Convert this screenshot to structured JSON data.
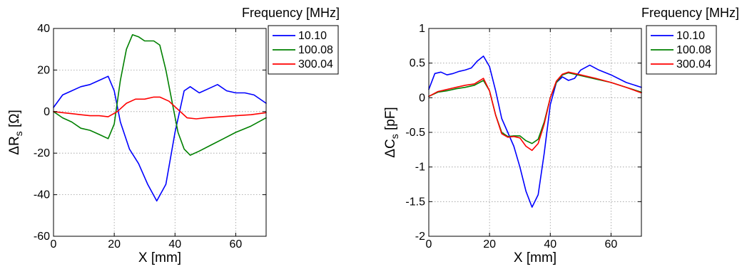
{
  "chart_data": [
    {
      "type": "line",
      "xlabel": "X [mm]",
      "ylabel": "ΔR",
      "ylabel_subscript": "s",
      "ylabel_unit": " [Ω]",
      "xlim": [
        0,
        70
      ],
      "ylim": [
        -60,
        40
      ],
      "xticks": [
        0,
        20,
        40,
        60
      ],
      "xtick_labels": [
        "0",
        "20",
        "40",
        "60"
      ],
      "yticks": [
        -60,
        -40,
        -20,
        0,
        20,
        40
      ],
      "ytick_labels": [
        "-60",
        "-40",
        "-20",
        "0",
        "20",
        "40"
      ],
      "grid": true,
      "legend_title": "Frequency [MHz]",
      "legend_position": "outside-right",
      "series": [
        {
          "name": "10.10",
          "color": "#0000ff",
          "x": [
            0,
            3,
            6,
            9,
            12,
            15,
            18,
            20,
            22,
            25,
            28,
            31,
            34,
            37,
            40,
            43,
            45,
            48,
            51,
            54,
            57,
            60,
            63,
            66,
            70
          ],
          "y": [
            2,
            8,
            10,
            12,
            13,
            15,
            17,
            10,
            -5,
            -18,
            -25,
            -35,
            -43,
            -35,
            -10,
            10,
            12,
            9,
            11,
            13,
            10,
            9,
            9,
            8,
            4
          ]
        },
        {
          "name": "100.08",
          "color": "#008000",
          "x": [
            0,
            3,
            6,
            9,
            12,
            15,
            18,
            20,
            22,
            24,
            26,
            28,
            30,
            33,
            35,
            37,
            39,
            41,
            43,
            45,
            48,
            52,
            56,
            60,
            65,
            70
          ],
          "y": [
            0,
            -3,
            -5,
            -8,
            -9,
            -11,
            -13,
            -6,
            15,
            30,
            37,
            36,
            34,
            34,
            32,
            20,
            5,
            -10,
            -18,
            -21,
            -19,
            -16,
            -13,
            -10,
            -7,
            -3
          ]
        },
        {
          "name": "300.04",
          "color": "#ff0000",
          "x": [
            0,
            3,
            6,
            9,
            12,
            15,
            18,
            21,
            24,
            27,
            30,
            33,
            35,
            38,
            41,
            44,
            47,
            50,
            55,
            60,
            65,
            70
          ],
          "y": [
            0,
            -0.5,
            -1,
            -1.5,
            -2,
            -2,
            -2.5,
            0,
            4,
            6,
            6,
            7,
            7,
            5,
            1,
            -3,
            -3.5,
            -3,
            -2.5,
            -2,
            -1.5,
            -0.5
          ]
        }
      ]
    },
    {
      "type": "line",
      "xlabel": "X [mm]",
      "ylabel": "ΔC",
      "ylabel_subscript": "s",
      "ylabel_unit": " [pF]",
      "xlim": [
        0,
        70
      ],
      "ylim": [
        -2,
        1
      ],
      "xticks": [
        0,
        20,
        40,
        60
      ],
      "xtick_labels": [
        "0",
        "20",
        "40",
        "60"
      ],
      "yticks": [
        -2,
        -1.5,
        -1,
        -0.5,
        0,
        0.5,
        1
      ],
      "ytick_labels": [
        "-2",
        "-1.5",
        "-1",
        "-0.5",
        "0",
        "0.5",
        "1"
      ],
      "grid": true,
      "legend_title": "Frequency [MHz]",
      "legend_position": "outside-right",
      "series": [
        {
          "name": "10.10",
          "color": "#0000ff",
          "x": [
            0,
            2,
            4,
            6,
            8,
            10,
            12,
            14,
            16,
            18,
            20,
            22,
            24,
            26,
            28,
            30,
            32,
            34,
            36,
            38,
            40,
            42,
            44,
            46,
            48,
            50,
            53,
            56,
            60,
            65,
            70
          ],
          "y": [
            0.12,
            0.35,
            0.37,
            0.33,
            0.35,
            0.38,
            0.4,
            0.43,
            0.53,
            0.6,
            0.45,
            0.1,
            -0.3,
            -0.5,
            -0.7,
            -1.0,
            -1.35,
            -1.58,
            -1.4,
            -0.8,
            -0.1,
            0.22,
            0.3,
            0.25,
            0.28,
            0.4,
            0.47,
            0.4,
            0.33,
            0.22,
            0.15
          ]
        },
        {
          "name": "100.08",
          "color": "#008000",
          "x": [
            0,
            3,
            6,
            9,
            12,
            15,
            18,
            20,
            22,
            24,
            26,
            28,
            30,
            32,
            34,
            36,
            38,
            40,
            42,
            44,
            46,
            50,
            55,
            60,
            65,
            70
          ],
          "y": [
            0.02,
            0.08,
            0.1,
            0.13,
            0.15,
            0.18,
            0.25,
            0.1,
            -0.25,
            -0.5,
            -0.56,
            -0.55,
            -0.55,
            -0.62,
            -0.66,
            -0.6,
            -0.35,
            0.0,
            0.22,
            0.33,
            0.36,
            0.32,
            0.27,
            0.22,
            0.15,
            0.08
          ]
        },
        {
          "name": "300.04",
          "color": "#ff0000",
          "x": [
            0,
            3,
            6,
            9,
            12,
            15,
            18,
            20,
            22,
            24,
            26,
            28,
            30,
            32,
            34,
            36,
            38,
            40,
            42,
            44,
            46,
            50,
            55,
            60,
            65,
            70
          ],
          "y": [
            0.02,
            0.09,
            0.12,
            0.15,
            0.18,
            0.2,
            0.28,
            0.1,
            -0.25,
            -0.52,
            -0.57,
            -0.56,
            -0.58,
            -0.7,
            -0.76,
            -0.66,
            -0.38,
            0.0,
            0.24,
            0.34,
            0.37,
            0.33,
            0.28,
            0.22,
            0.15,
            0.07
          ]
        }
      ]
    }
  ]
}
